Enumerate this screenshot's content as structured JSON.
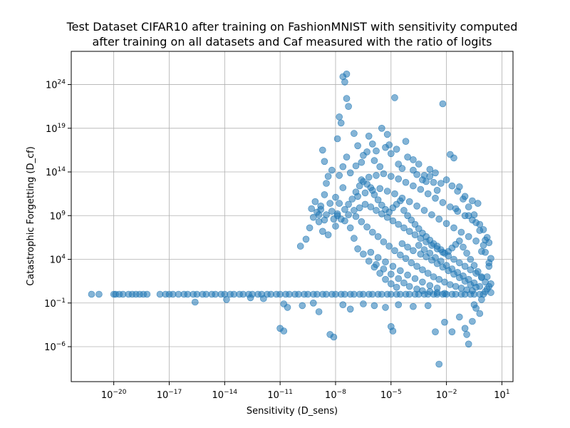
{
  "chart_data": {
    "type": "scatter",
    "title_line1": "Test Dataset CIFAR10 after training on FashionMNIST with sensitivity computed",
    "title_line2": "after training on all datasets and Caf measured with the ratio of logits",
    "xlabel": "Sensitivity (D_sens)",
    "ylabel": "Catastrophic Forgetting (D_cf)",
    "xscale": "log",
    "yscale": "log",
    "xlim_exp": [
      -22.3,
      1.6
    ],
    "ylim_exp": [
      -10.0,
      27.8
    ],
    "grid": true,
    "point_color": "#1f77b4",
    "point_alpha": 0.55,
    "x_ticks": [
      {
        "base": "10",
        "exp": "−20",
        "value_exp": -20
      },
      {
        "base": "10",
        "exp": "−17",
        "value_exp": -17
      },
      {
        "base": "10",
        "exp": "−14",
        "value_exp": -14
      },
      {
        "base": "10",
        "exp": "−11",
        "value_exp": -11
      },
      {
        "base": "10",
        "exp": "−8",
        "value_exp": -8
      },
      {
        "base": "10",
        "exp": "−5",
        "value_exp": -5
      },
      {
        "base": "10",
        "exp": "−2",
        "value_exp": -2
      },
      {
        "base": "10",
        "exp": "1",
        "value_exp": 1
      }
    ],
    "y_ticks": [
      {
        "base": "10",
        "exp": "−6",
        "value_exp": -6
      },
      {
        "base": "10",
        "exp": "−1",
        "value_exp": -1
      },
      {
        "base": "10",
        "exp": "4",
        "value_exp": 4
      },
      {
        "base": "10",
        "exp": "9",
        "value_exp": 9
      },
      {
        "base": "10",
        "exp": "14",
        "value_exp": 14
      },
      {
        "base": "10",
        "exp": "19",
        "value_exp": 19
      },
      {
        "base": "10",
        "exp": "24",
        "value_exp": 24
      }
    ],
    "points_log10": [
      [
        -21.2,
        0.0
      ],
      [
        -20.8,
        0.0
      ],
      [
        -20.0,
        0.0
      ],
      [
        -19.9,
        0.0
      ],
      [
        -19.7,
        0.0
      ],
      [
        -19.5,
        0.0
      ],
      [
        -19.2,
        0.0
      ],
      [
        -19.0,
        0.0
      ],
      [
        -18.8,
        0.0
      ],
      [
        -18.6,
        0.0
      ],
      [
        -18.4,
        0.0
      ],
      [
        -18.2,
        0.0
      ],
      [
        -17.5,
        0.0
      ],
      [
        -17.2,
        0.0
      ],
      [
        -17.0,
        0.0
      ],
      [
        -16.8,
        0.0
      ],
      [
        -16.5,
        0.0
      ],
      [
        -16.2,
        0.0
      ],
      [
        -16.0,
        0.0
      ],
      [
        -15.7,
        0.0
      ],
      [
        -15.5,
        0.0
      ],
      [
        -15.2,
        0.0
      ],
      [
        -15.0,
        0.0
      ],
      [
        -14.7,
        0.0
      ],
      [
        -14.5,
        0.0
      ],
      [
        -14.2,
        0.0
      ],
      [
        -14.0,
        0.0
      ],
      [
        -13.7,
        0.0
      ],
      [
        -13.5,
        0.0
      ],
      [
        -13.2,
        0.0
      ],
      [
        -13.0,
        0.0
      ],
      [
        -12.7,
        0.0
      ],
      [
        -12.5,
        0.0
      ],
      [
        -12.2,
        0.0
      ],
      [
        -12.0,
        0.0
      ],
      [
        -11.7,
        0.0
      ],
      [
        -11.5,
        0.0
      ],
      [
        -11.2,
        0.0
      ],
      [
        -11.0,
        0.0
      ],
      [
        -10.7,
        0.0
      ],
      [
        -10.5,
        0.0
      ],
      [
        -10.2,
        0.0
      ],
      [
        -10.0,
        0.0
      ],
      [
        -9.7,
        0.0
      ],
      [
        -9.5,
        0.0
      ],
      [
        -9.2,
        0.0
      ],
      [
        -9.0,
        0.0
      ],
      [
        -8.7,
        0.0
      ],
      [
        -8.5,
        0.0
      ],
      [
        -8.2,
        0.0
      ],
      [
        -8.0,
        0.0
      ],
      [
        -7.7,
        0.0
      ],
      [
        -7.5,
        0.0
      ],
      [
        -7.2,
        0.0
      ],
      [
        -7.0,
        0.0
      ],
      [
        -6.7,
        0.0
      ],
      [
        -6.5,
        0.0
      ],
      [
        -6.2,
        0.0
      ],
      [
        -6.0,
        0.0
      ],
      [
        -5.7,
        0.0
      ],
      [
        -5.5,
        0.0
      ],
      [
        -5.2,
        0.0
      ],
      [
        -5.0,
        0.0
      ],
      [
        -4.7,
        0.0
      ],
      [
        -4.5,
        0.0
      ],
      [
        -4.2,
        0.0
      ],
      [
        -4.0,
        0.0
      ],
      [
        -3.7,
        0.0
      ],
      [
        -3.5,
        0.0
      ],
      [
        -3.2,
        0.0
      ],
      [
        -3.0,
        0.0
      ],
      [
        -2.7,
        0.0
      ],
      [
        -2.5,
        0.0
      ],
      [
        -2.2,
        0.0
      ],
      [
        -2.0,
        0.0
      ],
      [
        -1.7,
        0.0
      ],
      [
        -1.5,
        0.0
      ],
      [
        -1.2,
        0.0
      ],
      [
        -1.0,
        0.0
      ],
      [
        -0.7,
        0.0
      ],
      [
        -0.5,
        0.0
      ],
      [
        -0.2,
        0.0
      ],
      [
        0.0,
        0.0
      ],
      [
        -15.6,
        -0.9
      ],
      [
        -13.9,
        -0.6
      ],
      [
        -12.6,
        -0.4
      ],
      [
        -11.9,
        -0.5
      ],
      [
        -10.8,
        -1.1
      ],
      [
        -10.6,
        -1.5
      ],
      [
        -11.0,
        -3.9
      ],
      [
        -10.8,
        -4.2
      ],
      [
        -9.8,
        -1.3
      ],
      [
        -9.2,
        -1.0
      ],
      [
        -8.9,
        -2.0
      ],
      [
        -8.3,
        -4.6
      ],
      [
        -8.1,
        -4.9
      ],
      [
        -7.6,
        -1.2
      ],
      [
        -7.2,
        -1.7
      ],
      [
        -6.5,
        -1.1
      ],
      [
        -5.9,
        -1.3
      ],
      [
        -5.3,
        -1.5
      ],
      [
        -5.0,
        -3.7
      ],
      [
        -4.9,
        -4.2
      ],
      [
        -4.6,
        -1.2
      ],
      [
        -3.8,
        -1.4
      ],
      [
        -3.0,
        -1.3
      ],
      [
        -2.6,
        -4.3
      ],
      [
        -2.1,
        -3.2
      ],
      [
        -1.7,
        -4.3
      ],
      [
        -1.3,
        -2.6
      ],
      [
        -0.9,
        -4.6
      ],
      [
        -1.0,
        -3.9
      ],
      [
        -0.8,
        -5.7
      ],
      [
        -2.4,
        -8.0
      ],
      [
        -0.4,
        -1.6
      ],
      [
        -0.2,
        -2.2
      ],
      [
        -0.6,
        -3.1
      ],
      [
        -9.9,
        5.5
      ],
      [
        -9.6,
        6.3
      ],
      [
        -9.4,
        7.6
      ],
      [
        -9.2,
        8.8
      ],
      [
        -9.0,
        9.4
      ],
      [
        -8.8,
        10.1
      ],
      [
        -8.6,
        11.4
      ],
      [
        -8.5,
        12.7
      ],
      [
        -8.4,
        13.5
      ],
      [
        -8.6,
        15.2
      ],
      [
        -8.7,
        16.5
      ],
      [
        -8.2,
        14.2
      ],
      [
        -8.1,
        8.6
      ],
      [
        -8.0,
        7.8
      ],
      [
        -7.9,
        9.2
      ],
      [
        -7.8,
        10.4
      ],
      [
        -7.6,
        12.2
      ],
      [
        -7.9,
        17.8
      ],
      [
        -7.8,
        20.3
      ],
      [
        -7.7,
        19.6
      ],
      [
        -7.6,
        24.9
      ],
      [
        -7.5,
        24.3
      ],
      [
        -7.4,
        25.2
      ],
      [
        -7.4,
        22.4
      ],
      [
        -7.3,
        21.5
      ],
      [
        -7.0,
        18.4
      ],
      [
        -6.8,
        17.0
      ],
      [
        -6.5,
        15.9
      ],
      [
        -6.2,
        18.1
      ],
      [
        -6.0,
        17.2
      ],
      [
        -5.8,
        16.4
      ],
      [
        -5.5,
        19.0
      ],
      [
        -5.2,
        18.3
      ],
      [
        -5.0,
        16.1
      ],
      [
        -4.8,
        22.5
      ],
      [
        -4.6,
        14.9
      ],
      [
        -4.2,
        17.5
      ],
      [
        -3.8,
        15.4
      ],
      [
        -3.6,
        13.7
      ],
      [
        -3.3,
        13.1
      ],
      [
        -3.1,
        12.9
      ],
      [
        -2.9,
        13.5
      ],
      [
        -2.7,
        12.8
      ],
      [
        -2.5,
        11.9
      ],
      [
        -2.2,
        21.8
      ],
      [
        -1.8,
        16.0
      ],
      [
        -1.6,
        15.6
      ],
      [
        -1.3,
        12.3
      ],
      [
        -1.0,
        11.2
      ],
      [
        -0.6,
        10.7
      ],
      [
        -0.3,
        10.4
      ],
      [
        -1.5,
        9.8
      ],
      [
        -0.8,
        9.0
      ],
      [
        -0.4,
        8.2
      ],
      [
        0.0,
        7.4
      ],
      [
        0.2,
        6.5
      ],
      [
        0.3,
        5.9
      ],
      [
        0.1,
        4.8
      ],
      [
        0.4,
        4.1
      ],
      [
        0.3,
        3.2
      ],
      [
        0.2,
        2.0
      ],
      [
        0.4,
        1.2
      ],
      [
        0.1,
        0.3
      ],
      [
        -0.1,
        -0.6
      ],
      [
        -0.5,
        -1.2
      ],
      [
        -7.5,
        8.4
      ],
      [
        -7.2,
        7.6
      ],
      [
        -7.0,
        6.4
      ],
      [
        -6.8,
        5.2
      ],
      [
        -6.5,
        4.6
      ],
      [
        -6.2,
        3.8
      ],
      [
        -5.9,
        3.1
      ],
      [
        -5.6,
        2.4
      ],
      [
        -5.3,
        1.7
      ],
      [
        -5.0,
        1.2
      ],
      [
        -4.7,
        0.8
      ],
      [
        -7.3,
        9.1
      ],
      [
        -6.9,
        8.9
      ],
      [
        -6.6,
        8.3
      ],
      [
        -6.3,
        7.7
      ],
      [
        -6.0,
        7.1
      ],
      [
        -5.7,
        6.6
      ],
      [
        -5.4,
        6.0
      ],
      [
        -5.1,
        5.5
      ],
      [
        -4.8,
        5.0
      ],
      [
        -4.5,
        4.5
      ],
      [
        -4.2,
        4.1
      ],
      [
        -3.9,
        3.6
      ],
      [
        -3.6,
        3.2
      ],
      [
        -3.3,
        2.8
      ],
      [
        -3.0,
        2.4
      ],
      [
        -2.7,
        2.0
      ],
      [
        -2.4,
        1.7
      ],
      [
        -2.1,
        1.4
      ],
      [
        -1.8,
        1.1
      ],
      [
        -1.5,
        0.9
      ],
      [
        -1.2,
        0.7
      ],
      [
        -0.9,
        0.5
      ],
      [
        -0.6,
        0.4
      ],
      [
        -7.0,
        9.6
      ],
      [
        -6.7,
        9.9
      ],
      [
        -6.4,
        10.3
      ],
      [
        -6.1,
        10.0
      ],
      [
        -5.8,
        9.6
      ],
      [
        -5.5,
        9.2
      ],
      [
        -5.2,
        8.8
      ],
      [
        -4.9,
        8.4
      ],
      [
        -4.6,
        8.0
      ],
      [
        -4.3,
        7.6
      ],
      [
        -4.0,
        7.2
      ],
      [
        -3.7,
        6.8
      ],
      [
        -3.4,
        6.4
      ],
      [
        -3.1,
        6.0
      ],
      [
        -2.8,
        5.6
      ],
      [
        -2.5,
        5.2
      ],
      [
        -2.2,
        4.8
      ],
      [
        -1.9,
        4.4
      ],
      [
        -1.6,
        4.0
      ],
      [
        -1.3,
        3.6
      ],
      [
        -1.0,
        3.2
      ],
      [
        -0.7,
        2.8
      ],
      [
        -0.4,
        2.4
      ],
      [
        -0.1,
        2.0
      ],
      [
        -6.8,
        11.2
      ],
      [
        -6.4,
        11.6
      ],
      [
        -6.0,
        11.9
      ],
      [
        -5.6,
        12.1
      ],
      [
        -5.2,
        11.8
      ],
      [
        -4.8,
        11.5
      ],
      [
        -4.4,
        11.0
      ],
      [
        -4.0,
        10.6
      ],
      [
        -3.6,
        10.1
      ],
      [
        -3.2,
        9.6
      ],
      [
        -2.8,
        9.1
      ],
      [
        -2.4,
        8.6
      ],
      [
        -2.0,
        8.1
      ],
      [
        -1.6,
        7.6
      ],
      [
        -1.2,
        7.1
      ],
      [
        -0.8,
        6.6
      ],
      [
        -0.4,
        6.1
      ],
      [
        0.0,
        5.6
      ],
      [
        -6.6,
        13.1
      ],
      [
        -6.2,
        13.4
      ],
      [
        -5.8,
        13.6
      ],
      [
        -5.4,
        13.8
      ],
      [
        -5.0,
        13.5
      ],
      [
        -4.6,
        13.2
      ],
      [
        -4.2,
        12.8
      ],
      [
        -3.8,
        12.4
      ],
      [
        -3.4,
        12.0
      ],
      [
        -3.0,
        11.5
      ],
      [
        -2.6,
        11.0
      ],
      [
        -2.2,
        10.5
      ],
      [
        -1.8,
        10.0
      ],
      [
        -1.4,
        9.5
      ],
      [
        -1.0,
        9.0
      ],
      [
        -0.6,
        8.5
      ],
      [
        -0.2,
        8.0
      ],
      [
        -9.3,
        9.8
      ],
      [
        -9.1,
        10.6
      ],
      [
        -8.9,
        8.3
      ],
      [
        -8.7,
        7.2
      ],
      [
        -8.4,
        6.8
      ],
      [
        -8.2,
        9.5
      ],
      [
        -8.0,
        11.1
      ],
      [
        -7.8,
        13.6
      ],
      [
        -7.6,
        14.6
      ],
      [
        -7.4,
        15.7
      ],
      [
        -7.2,
        13.9
      ],
      [
        -6.9,
        14.7
      ],
      [
        -6.6,
        15.1
      ],
      [
        -6.3,
        16.3
      ],
      [
        -5.9,
        15.3
      ],
      [
        -5.6,
        14.6
      ],
      [
        -5.3,
        16.8
      ],
      [
        -5.1,
        17.1
      ],
      [
        -4.7,
        16.6
      ],
      [
        -4.4,
        14.4
      ],
      [
        -4.1,
        15.7
      ],
      [
        -3.8,
        14.2
      ],
      [
        -3.5,
        14.9
      ],
      [
        -3.2,
        13.6
      ],
      [
        -2.9,
        14.3
      ],
      [
        -2.6,
        13.9
      ],
      [
        -2.3,
        12.7
      ],
      [
        -2.0,
        13.1
      ],
      [
        -1.7,
        12.4
      ],
      [
        -1.4,
        11.8
      ],
      [
        -1.1,
        10.9
      ],
      [
        -0.8,
        10.0
      ],
      [
        -0.5,
        9.1
      ],
      [
        -0.2,
        7.3
      ],
      [
        0.1,
        6.2
      ],
      [
        -0.1,
        4.9
      ],
      [
        0.3,
        3.6
      ],
      [
        -3.4,
        4.6
      ],
      [
        -3.1,
        4.3
      ],
      [
        -2.8,
        3.9
      ],
      [
        -2.5,
        3.5
      ],
      [
        -2.2,
        3.1
      ],
      [
        -1.9,
        2.7
      ],
      [
        -1.6,
        2.3
      ],
      [
        -1.3,
        1.9
      ],
      [
        -1.0,
        1.5
      ],
      [
        -0.7,
        1.1
      ],
      [
        -0.4,
        0.8
      ],
      [
        -4.4,
        5.8
      ],
      [
        -4.1,
        5.4
      ],
      [
        -3.8,
        5.0
      ],
      [
        -3.5,
        5.6
      ],
      [
        -3.2,
        5.1
      ],
      [
        -2.9,
        4.7
      ],
      [
        -2.6,
        4.2
      ],
      [
        -2.3,
        3.8
      ],
      [
        -2.0,
        3.3
      ],
      [
        -1.7,
        2.9
      ],
      [
        -1.4,
        2.5
      ],
      [
        -1.1,
        2.1
      ],
      [
        -0.8,
        1.7
      ],
      [
        -0.5,
        1.3
      ],
      [
        -0.2,
        0.9
      ],
      [
        0.2,
        0.6
      ],
      [
        -5.8,
        3.4
      ],
      [
        -5.4,
        2.9
      ],
      [
        -5.0,
        2.3
      ],
      [
        -4.6,
        1.8
      ],
      [
        -4.3,
        1.3
      ],
      [
        -4.0,
        0.9
      ],
      [
        -3.6,
        0.6
      ],
      [
        -3.3,
        0.4
      ],
      [
        -2.9,
        0.3
      ],
      [
        -2.5,
        0.2
      ],
      [
        -2.1,
        0.1
      ],
      [
        -6.1,
        4.8
      ],
      [
        -5.7,
        4.2
      ],
      [
        -5.3,
        3.7
      ],
      [
        -4.9,
        3.2
      ],
      [
        -4.5,
        2.7
      ],
      [
        -4.1,
        2.2
      ],
      [
        -3.7,
        1.8
      ],
      [
        -3.3,
        1.4
      ],
      [
        -2.9,
        1.0
      ],
      [
        -2.5,
        0.7
      ],
      [
        -7.9,
        9.0
      ],
      [
        -7.7,
        8.6
      ],
      [
        -7.5,
        9.7
      ],
      [
        -7.3,
        10.3
      ],
      [
        -7.1,
        10.9
      ],
      [
        -6.9,
        11.7
      ],
      [
        -6.7,
        12.4
      ],
      [
        -6.5,
        12.9
      ],
      [
        -6.3,
        12.6
      ],
      [
        -6.1,
        12.2
      ],
      [
        -5.9,
        11.4
      ],
      [
        -5.7,
        10.8
      ],
      [
        -5.5,
        10.2
      ],
      [
        -5.3,
        9.7
      ],
      [
        -5.1,
        9.4
      ],
      [
        -4.9,
        9.9
      ],
      [
        -4.7,
        10.3
      ],
      [
        -4.5,
        10.7
      ],
      [
        -4.3,
        9.6
      ],
      [
        -4.1,
        9.0
      ],
      [
        -3.9,
        8.5
      ],
      [
        -3.7,
        8.0
      ],
      [
        -3.5,
        7.5
      ],
      [
        -3.3,
        7.0
      ],
      [
        -3.1,
        6.6
      ],
      [
        -2.9,
        6.2
      ],
      [
        -2.7,
        5.8
      ],
      [
        -2.5,
        5.5
      ],
      [
        -2.3,
        5.1
      ],
      [
        -2.1,
        4.7
      ],
      [
        -1.9,
        4.9
      ],
      [
        -1.7,
        5.3
      ],
      [
        -1.5,
        5.7
      ],
      [
        -1.3,
        6.1
      ],
      [
        -1.1,
        5.4
      ],
      [
        -0.9,
        4.7
      ],
      [
        -0.7,
        4.0
      ],
      [
        -0.5,
        3.3
      ],
      [
        -0.3,
        2.6
      ],
      [
        -0.1,
        1.9
      ],
      [
        0.1,
        1.4
      ],
      [
        0.3,
        0.9
      ],
      [
        0.4,
        0.2
      ],
      [
        -8.8,
        9.7
      ],
      [
        -8.5,
        9.1
      ],
      [
        -8.3,
        10.4
      ],
      [
        -8.6,
        8.5
      ],
      [
        -8.9,
        9.1
      ]
    ]
  }
}
